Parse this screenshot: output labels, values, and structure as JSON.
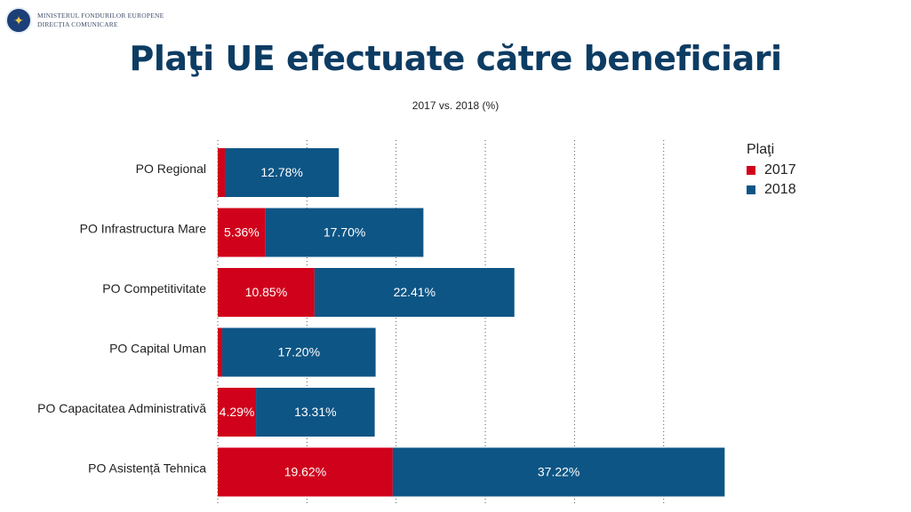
{
  "header": {
    "org_line1": "MINISTERUL FONDURILOR EUROPENE",
    "org_line2": "DIRECȚIA COMUNICARE",
    "logo_icon": "coat-of-arms-icon"
  },
  "chart_data": {
    "type": "bar",
    "orientation": "horizontal",
    "stacked": true,
    "title": "Plaţi UE efectuate către beneficiari",
    "subtitle": "2017 vs. 2018 (%)",
    "categories": [
      "PO Regional",
      "PO Infrastructura Mare",
      "PO Competitivitate",
      "PO Capital Uman",
      "PO Capacitatea Administrativă",
      "PO Asistență Tehnica"
    ],
    "series": [
      {
        "name": "2017",
        "color": "#d0021b",
        "values": [
          0.8,
          5.36,
          10.85,
          0.5,
          4.29,
          19.62
        ],
        "labels": [
          "",
          "5.36%",
          "10.85%",
          "",
          "4.29%",
          "19.62%"
        ]
      },
      {
        "name": "2018",
        "color": "#0d5585",
        "values": [
          12.78,
          17.7,
          22.41,
          17.2,
          13.31,
          37.22
        ],
        "labels": [
          "12.78%",
          "17.70%",
          "22.41%",
          "17.20%",
          "13.31%",
          "37.22%"
        ]
      }
    ],
    "xlim": [
      0,
      58
    ],
    "grid": true,
    "grid_style": "dotted",
    "legend_title": "Plaţi",
    "legend_position": "top-right"
  }
}
